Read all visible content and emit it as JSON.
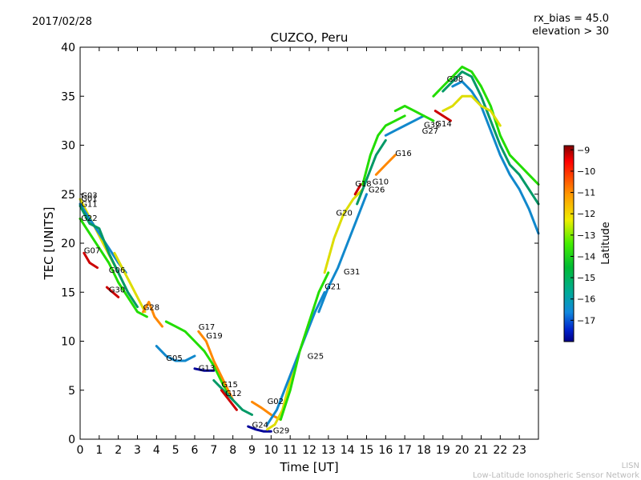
{
  "header": {
    "date": "2017/02/28",
    "rx_bias": "rx_bias = 45.0",
    "elevation": "elevation > 30"
  },
  "footer": {
    "line1": "LISN",
    "line2": "Low-Latitude Ionospheric Sensor Network"
  },
  "colors": {
    "red": "#cc0000",
    "orange": "#ff8800",
    "yellow": "#dddd00",
    "green": "#22dd00",
    "teal": "#009966",
    "blue": "#1188cc",
    "navy": "#000099"
  },
  "colorbar": {
    "label": "Latitude",
    "ticks": [
      "−9",
      "−10",
      "−11",
      "−12",
      "−13",
      "−14",
      "−15",
      "−16",
      "−17"
    ],
    "range": [
      -18,
      -8.8
    ]
  },
  "chart_data": {
    "type": "line",
    "title": "CUZCO, Peru",
    "xlabel": "Time [UT]",
    "ylabel": "TEC [UNITS]",
    "xlim": [
      0,
      24
    ],
    "ylim": [
      0,
      40
    ],
    "xticks": [
      "0",
      "1",
      "2",
      "3",
      "4",
      "5",
      "6",
      "7",
      "8",
      "9",
      "10",
      "11",
      "12",
      "13",
      "14",
      "15",
      "16",
      "17",
      "18",
      "19",
      "20",
      "21",
      "22",
      "23"
    ],
    "yticks": [
      "0",
      "5",
      "10",
      "15",
      "20",
      "25",
      "30",
      "35",
      "40"
    ],
    "series": [
      {
        "name": "G03",
        "color": "#dddd00",
        "x": [
          0,
          0.4,
          0.8,
          1.2,
          1.6,
          2.0
        ],
        "y": [
          24.5,
          23,
          21.5,
          20,
          18.5,
          17
        ]
      },
      {
        "name": "G01",
        "color": "#1188cc",
        "x": [
          0,
          0.5,
          1.0,
          1.5,
          2.0,
          2.4
        ],
        "y": [
          24,
          22.5,
          21,
          19.5,
          18,
          17
        ]
      },
      {
        "name": "G11",
        "color": "#009966",
        "x": [
          0,
          0.5,
          1.0,
          1.5,
          2.0,
          2.5,
          3.0
        ],
        "y": [
          23.8,
          22,
          21.5,
          19,
          17,
          15,
          13.5
        ]
      },
      {
        "name": "G22",
        "color": "#22dd00",
        "x": [
          0,
          0.5,
          1.0,
          1.5,
          2.0,
          2.5,
          3.0,
          3.5
        ],
        "y": [
          22.5,
          21,
          19.5,
          18,
          16,
          14.5,
          13,
          12.5
        ]
      },
      {
        "name": "G07",
        "color": "#cc0000",
        "x": [
          0.2,
          0.5,
          0.9
        ],
        "y": [
          19,
          18,
          17.5
        ]
      },
      {
        "name": "G06",
        "color": "#dddd00",
        "x": [
          1.8,
          2.2,
          2.6,
          3.0,
          3.4
        ],
        "y": [
          19,
          17.5,
          16,
          14.5,
          13
        ]
      },
      {
        "name": "G30",
        "color": "#cc0000",
        "x": [
          1.4,
          1.7,
          2.0
        ],
        "y": [
          15.5,
          15,
          14.5
        ]
      },
      {
        "name": "G28",
        "color": "#ff8800",
        "x": [
          3.3,
          3.6,
          3.9,
          4.3
        ],
        "y": [
          13,
          14,
          12.5,
          11.5
        ]
      },
      {
        "name": "G05",
        "color": "#1188cc",
        "x": [
          4.0,
          4.5,
          5.0,
          5.5,
          6.0
        ],
        "y": [
          9.5,
          8.5,
          8,
          8,
          8.5
        ]
      },
      {
        "name": "G13",
        "color": "#000099",
        "x": [
          6.0,
          6.5,
          7.0
        ],
        "y": [
          7.2,
          7,
          7
        ]
      },
      {
        "name": "G17",
        "color": "#22dd00",
        "x": [
          4.5,
          5.0,
          5.5,
          6.0,
          6.5,
          7.0,
          7.5,
          8.0
        ],
        "y": [
          12,
          11.5,
          11,
          10,
          9,
          7.5,
          5.5,
          4
        ]
      },
      {
        "name": "G19",
        "color": "#ff8800",
        "x": [
          6.2,
          6.6,
          7.0,
          7.5,
          8.0
        ],
        "y": [
          11,
          10,
          8,
          6,
          4
        ]
      },
      {
        "name": "G15",
        "color": "#009966",
        "x": [
          7.0,
          7.5,
          8.0,
          8.5,
          9.0
        ],
        "y": [
          6,
          5,
          4,
          3,
          2.5
        ]
      },
      {
        "name": "G12",
        "color": "#cc0000",
        "x": [
          7.4,
          7.8,
          8.2
        ],
        "y": [
          5,
          4,
          3
        ]
      },
      {
        "name": "G02",
        "color": "#ff8800",
        "x": [
          9.0,
          9.5,
          10.0,
          10.5
        ],
        "y": [
          3.8,
          3.2,
          2.5,
          2
        ]
      },
      {
        "name": "G24",
        "color": "#000099",
        "x": [
          8.8,
          9.2,
          9.6,
          10.0
        ],
        "y": [
          1.3,
          1,
          0.8,
          0.8
        ]
      },
      {
        "name": "G29",
        "color": "#dddd00",
        "x": [
          9.8,
          10.2,
          10.6,
          11.0,
          11.5,
          12.0
        ],
        "y": [
          1,
          1.5,
          3,
          6,
          9,
          12
        ]
      },
      {
        "name": "G25",
        "color": "#1188cc",
        "x": [
          9.8,
          10.3,
          10.8,
          11.3,
          11.8,
          12.3,
          12.8
        ],
        "y": [
          1.5,
          3,
          5.5,
          8,
          10.5,
          13,
          15
        ]
      },
      {
        "name": "G21",
        "color": "#22dd00",
        "x": [
          10.5,
          11.0,
          11.5,
          12.0,
          12.5,
          13.0
        ],
        "y": [
          2,
          5,
          9,
          12,
          15,
          17
        ]
      },
      {
        "name": "G31",
        "color": "#1188cc",
        "x": [
          12.5,
          13.0,
          13.5,
          14.0,
          14.5,
          15.0
        ],
        "y": [
          13,
          15.5,
          17.5,
          20,
          22.5,
          25
        ]
      },
      {
        "name": "G20",
        "color": "#dddd00",
        "x": [
          12.8,
          13.3,
          13.8,
          14.3,
          14.8
        ],
        "y": [
          17,
          20.5,
          23,
          24.5,
          25.5
        ]
      },
      {
        "name": "G18",
        "color": "#cc0000",
        "x": [
          14.4,
          14.7
        ],
        "y": [
          25,
          26
        ]
      },
      {
        "name": "G26",
        "color": "#009966",
        "x": [
          14.5,
          15.0,
          15.5,
          16.0
        ],
        "y": [
          24,
          26.5,
          29,
          30.5
        ]
      },
      {
        "name": "G10",
        "color": "#22dd00",
        "x": [
          14.8,
          15.2,
          15.6,
          16.0,
          16.5,
          17.0
        ],
        "y": [
          26,
          29,
          31,
          32,
          32.5,
          33
        ]
      },
      {
        "name": "G16",
        "color": "#ff8800",
        "x": [
          15.5,
          16.0,
          16.5
        ],
        "y": [
          27,
          28,
          29
        ]
      },
      {
        "name": "G27",
        "color": "#1188cc",
        "x": [
          16.0,
          16.5,
          17.0,
          17.5,
          18.0
        ],
        "y": [
          31,
          31.5,
          32,
          32.5,
          33
        ]
      },
      {
        "name": "G32",
        "color": "#22dd00",
        "x": [
          16.5,
          17.0,
          17.5,
          18.0,
          18.5
        ],
        "y": [
          33.5,
          34,
          33.5,
          33,
          32.5
        ]
      },
      {
        "name": "G14",
        "color": "#cc0000",
        "x": [
          18.6,
          19.0,
          19.4
        ],
        "y": [
          33.5,
          33,
          32.5
        ]
      },
      {
        "name": "G08",
        "color": "#22dd00",
        "x": [
          18.5,
          19.0,
          19.5,
          20.0,
          20.5,
          21.0,
          21.5,
          22.0,
          22.5,
          23.0,
          23.5,
          24.0
        ],
        "y": [
          35,
          36,
          37,
          38,
          37.5,
          36,
          34,
          31,
          29,
          28,
          27,
          26
        ]
      },
      {
        "name": "",
        "color": "#009966",
        "x": [
          19.0,
          19.5,
          20.0,
          20.5,
          21.0,
          21.5,
          22.0,
          22.5,
          23.0,
          23.5,
          24.0
        ],
        "y": [
          35.5,
          36.5,
          37.5,
          37,
          35,
          32.5,
          30,
          28,
          27,
          25.5,
          24
        ]
      },
      {
        "name": "",
        "color": "#1188cc",
        "x": [
          19.5,
          20.0,
          20.5,
          21.0,
          21.5,
          22.0,
          22.5,
          23.0,
          23.5,
          24.0
        ],
        "y": [
          36,
          36.5,
          35.5,
          34,
          31.5,
          29,
          27,
          25.5,
          23.5,
          21
        ]
      },
      {
        "name": "",
        "color": "#dddd00",
        "x": [
          19.0,
          19.5,
          20.0,
          20.5,
          21.0,
          21.5,
          22.0
        ],
        "y": [
          33.5,
          34,
          35,
          35,
          34,
          33.5,
          32
        ]
      }
    ],
    "labels": [
      {
        "text": "G03",
        "x": 0.05,
        "y": 24.6
      },
      {
        "text": "G01",
        "x": 0.05,
        "y": 24.3
      },
      {
        "text": "G11",
        "x": 0.05,
        "y": 23.7
      },
      {
        "text": "G22",
        "x": 0.05,
        "y": 22.3
      },
      {
        "text": "G07",
        "x": 0.2,
        "y": 19
      },
      {
        "text": "G06",
        "x": 1.5,
        "y": 17
      },
      {
        "text": "G30",
        "x": 1.5,
        "y": 15
      },
      {
        "text": "G28",
        "x": 3.3,
        "y": 13.2
      },
      {
        "text": "G05",
        "x": 4.5,
        "y": 8
      },
      {
        "text": "G13",
        "x": 6.2,
        "y": 7
      },
      {
        "text": "G17",
        "x": 6.2,
        "y": 11.2
      },
      {
        "text": "G19",
        "x": 6.6,
        "y": 10.3
      },
      {
        "text": "G15",
        "x": 7.4,
        "y": 5.3
      },
      {
        "text": "G12",
        "x": 7.6,
        "y": 4.4
      },
      {
        "text": "G02",
        "x": 9.8,
        "y": 3.6
      },
      {
        "text": "G24",
        "x": 9.0,
        "y": 1.2
      },
      {
        "text": "G29",
        "x": 10.1,
        "y": 0.6
      },
      {
        "text": "G25",
        "x": 11.9,
        "y": 8.2
      },
      {
        "text": "G21",
        "x": 12.8,
        "y": 15.3
      },
      {
        "text": "G31",
        "x": 13.8,
        "y": 16.8
      },
      {
        "text": "G20",
        "x": 13.4,
        "y": 22.8
      },
      {
        "text": "G18",
        "x": 14.4,
        "y": 25.8
      },
      {
        "text": "G10",
        "x": 15.3,
        "y": 26
      },
      {
        "text": "G26",
        "x": 15.1,
        "y": 25.2
      },
      {
        "text": "G16",
        "x": 16.5,
        "y": 28.9
      },
      {
        "text": "G27",
        "x": 17.9,
        "y": 31.2
      },
      {
        "text": "G32",
        "x": 18.0,
        "y": 31.8
      },
      {
        "text": "G14",
        "x": 18.6,
        "y": 31.9
      },
      {
        "text": "G08",
        "x": 19.2,
        "y": 36.5
      }
    ]
  }
}
